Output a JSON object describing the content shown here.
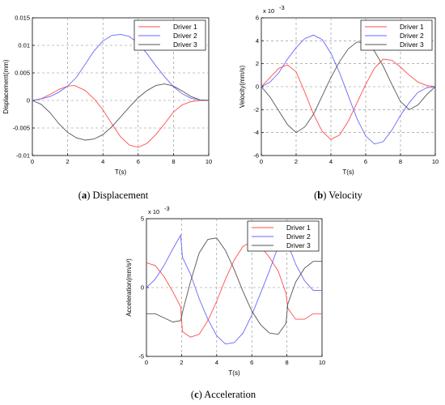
{
  "chart_data": [
    {
      "type": "line",
      "caption_letter": "a",
      "caption_text": "Displacement",
      "xlabel": "T(s)",
      "ylabel": "Displacement(mm)",
      "exponent_label": "",
      "xlim": [
        0,
        10
      ],
      "ylim": [
        -0.01,
        0.015
      ],
      "xticks": [
        0,
        2,
        4,
        6,
        8,
        10
      ],
      "yticks": [
        -0.01,
        -0.005,
        0,
        0.005,
        0.01,
        0.015
      ],
      "ytick_labels": [
        "-0.01",
        "-0.005",
        "0",
        "0.005",
        "0.01",
        "0.015"
      ],
      "grid": true,
      "legend_position": "top-right",
      "series": [
        {
          "name": "Driver 1",
          "color": "#ff4d4d",
          "x": [
            0,
            0.5,
            1,
            1.5,
            2,
            2.4,
            3,
            3.5,
            4,
            4.5,
            5,
            5.5,
            6,
            6.5,
            7,
            7.5,
            8,
            8.5,
            9,
            9.5,
            10
          ],
          "y": [
            0,
            0.0003,
            0.0011,
            0.002,
            0.0026,
            0.0027,
            0.0018,
            0.0003,
            -0.0017,
            -0.0042,
            -0.0066,
            -0.0081,
            -0.0085,
            -0.0078,
            -0.0062,
            -0.0042,
            -0.0021,
            -0.0008,
            -0.0002,
            0,
            0
          ]
        },
        {
          "name": "Driver 2",
          "color": "#6666ff",
          "x": [
            0,
            0.5,
            1,
            1.5,
            2,
            2.5,
            3,
            3.5,
            4,
            4.5,
            5,
            5.5,
            6,
            6.5,
            7,
            7.5,
            8,
            8.5,
            9,
            9.5,
            10
          ],
          "y": [
            0,
            0.0003,
            0.0007,
            0.0015,
            0.0026,
            0.0042,
            0.0066,
            0.009,
            0.0108,
            0.0118,
            0.012,
            0.0116,
            0.0104,
            0.0085,
            0.0063,
            0.0043,
            0.0025,
            0.0012,
            0.0004,
            0.0001,
            0
          ]
        },
        {
          "name": "Driver 3",
          "color": "#555555",
          "x": [
            0,
            0.5,
            1,
            1.5,
            2,
            2.5,
            3,
            3.5,
            4,
            4.5,
            5,
            5.5,
            6,
            6.5,
            7,
            7.5,
            8,
            8.5,
            9,
            9.5,
            10
          ],
          "y": [
            0,
            -0.0007,
            -0.0022,
            -0.0042,
            -0.0058,
            -0.0068,
            -0.0072,
            -0.007,
            -0.0062,
            -0.0048,
            -0.003,
            -0.0012,
            0.0005,
            0.0018,
            0.0027,
            0.003,
            0.0026,
            0.0017,
            0.0007,
            0.0001,
            0
          ]
        }
      ]
    },
    {
      "type": "line",
      "caption_letter": "b",
      "caption_text": "Velocity",
      "xlabel": "T(s)",
      "ylabel": "Velocity(mm/s)",
      "exponent_label": "x 10",
      "exponent_power": "-3",
      "xlim": [
        0,
        10
      ],
      "ylim": [
        -6,
        6
      ],
      "xticks": [
        0,
        2,
        4,
        6,
        8,
        10
      ],
      "yticks": [
        -6,
        -4,
        -2,
        0,
        2,
        4,
        6
      ],
      "ytick_labels": [
        "-6",
        "-4",
        "-2",
        "0",
        "2",
        "4",
        "6"
      ],
      "grid": true,
      "legend_position": "top-right",
      "series": [
        {
          "name": "Driver 1",
          "color": "#ff4d4d",
          "x": [
            0,
            0.5,
            1,
            1.5,
            2,
            2.5,
            3,
            3.5,
            4,
            4.5,
            5,
            5.5,
            6,
            6.5,
            7,
            7.5,
            8,
            8.5,
            9,
            9.5,
            10
          ],
          "y": [
            0,
            0.8,
            1.6,
            1.9,
            1.3,
            -0.5,
            -2.4,
            -3.9,
            -4.6,
            -4.2,
            -3.0,
            -1.4,
            0.2,
            1.6,
            2.4,
            2.3,
            1.7,
            1.0,
            0.4,
            0.1,
            0
          ]
        },
        {
          "name": "Driver 2",
          "color": "#6666ff",
          "x": [
            0,
            0.5,
            1,
            1.5,
            2,
            2.5,
            3,
            3.5,
            4,
            4.5,
            5,
            5.5,
            6,
            6.5,
            7,
            7.5,
            8,
            8.5,
            9,
            9.5,
            10
          ],
          "y": [
            0,
            0.4,
            1.2,
            2.4,
            3.4,
            4.2,
            4.5,
            4.1,
            2.9,
            1.2,
            -0.8,
            -2.8,
            -4.3,
            -5.0,
            -4.8,
            -3.8,
            -2.5,
            -1.4,
            -0.5,
            -0.1,
            0
          ]
        },
        {
          "name": "Driver 3",
          "color": "#555555",
          "x": [
            0,
            0.5,
            1,
            1.5,
            2,
            2.5,
            3,
            3.5,
            4,
            4.5,
            5,
            5.5,
            6,
            6.5,
            7,
            7.5,
            8,
            8.5,
            9,
            9.5,
            10
          ],
          "y": [
            0,
            -0.9,
            -2.1,
            -3.3,
            -4.0,
            -3.5,
            -2.4,
            -0.8,
            0.8,
            2.2,
            3.3,
            3.9,
            3.8,
            3.1,
            1.8,
            0.2,
            -1.3,
            -2.0,
            -1.6,
            -0.7,
            0
          ]
        }
      ]
    },
    {
      "type": "line",
      "caption_letter": "c",
      "caption_text": "Acceleration",
      "xlabel": "T(s)",
      "ylabel": "Acceleration(mm/s²)",
      "exponent_label": "x 10",
      "exponent_power": "-3",
      "xlim": [
        0,
        10
      ],
      "ylim": [
        -5,
        5
      ],
      "xticks": [
        0,
        2,
        4,
        6,
        8,
        10
      ],
      "yticks": [
        -5,
        0,
        5
      ],
      "ytick_labels": [
        "-5",
        "0",
        "5"
      ],
      "grid": true,
      "legend_position": "top-right",
      "series": [
        {
          "name": "Driver 1",
          "color": "#ff4d4d",
          "x": [
            0,
            0.5,
            1,
            1.5,
            1.95,
            2.05,
            2.5,
            3,
            3.5,
            4,
            4.5,
            5,
            5.5,
            6,
            6.5,
            7,
            7.5,
            7.95,
            8.05,
            8.5,
            9,
            9.5,
            10
          ],
          "y": [
            1.8,
            1.6,
            0.8,
            -0.3,
            -1.4,
            -3.2,
            -3.6,
            -3.4,
            -2.4,
            -1.0,
            0.6,
            2.0,
            3.0,
            3.3,
            3.0,
            2.2,
            1.2,
            -0.4,
            -1.5,
            -2.3,
            -2.3,
            -1.9,
            -1.9
          ]
        },
        {
          "name": "Driver 2",
          "color": "#6666ff",
          "x": [
            0,
            0.5,
            1,
            1.5,
            1.95,
            2.05,
            2.5,
            3,
            3.5,
            4,
            4.5,
            5,
            5.5,
            6,
            6.5,
            7,
            7.5,
            7.95,
            8.05,
            8.5,
            9,
            9.5,
            10
          ],
          "y": [
            0,
            0.6,
            1.6,
            2.8,
            3.8,
            2.2,
            1.0,
            -0.8,
            -2.3,
            -3.5,
            -4.1,
            -4.0,
            -3.3,
            -2.0,
            -0.4,
            1.2,
            3.0,
            4.5,
            3.2,
            1.7,
            0.5,
            -0.2,
            -0.2
          ]
        },
        {
          "name": "Driver 3",
          "color": "#555555",
          "x": [
            0,
            0.5,
            1,
            1.5,
            1.95,
            2.05,
            2.5,
            3,
            3.5,
            4,
            4.5,
            5,
            5.5,
            6,
            6.5,
            7,
            7.5,
            7.95,
            8.05,
            8.5,
            9,
            9.5,
            10
          ],
          "y": [
            -1.9,
            -1.9,
            -2.2,
            -2.5,
            -2.4,
            -1.8,
            0.4,
            2.5,
            3.5,
            3.6,
            2.7,
            1.3,
            -0.3,
            -1.7,
            -2.7,
            -3.3,
            -3.4,
            -2.6,
            -1.2,
            0.4,
            1.4,
            1.9,
            1.9
          ]
        }
      ]
    }
  ]
}
